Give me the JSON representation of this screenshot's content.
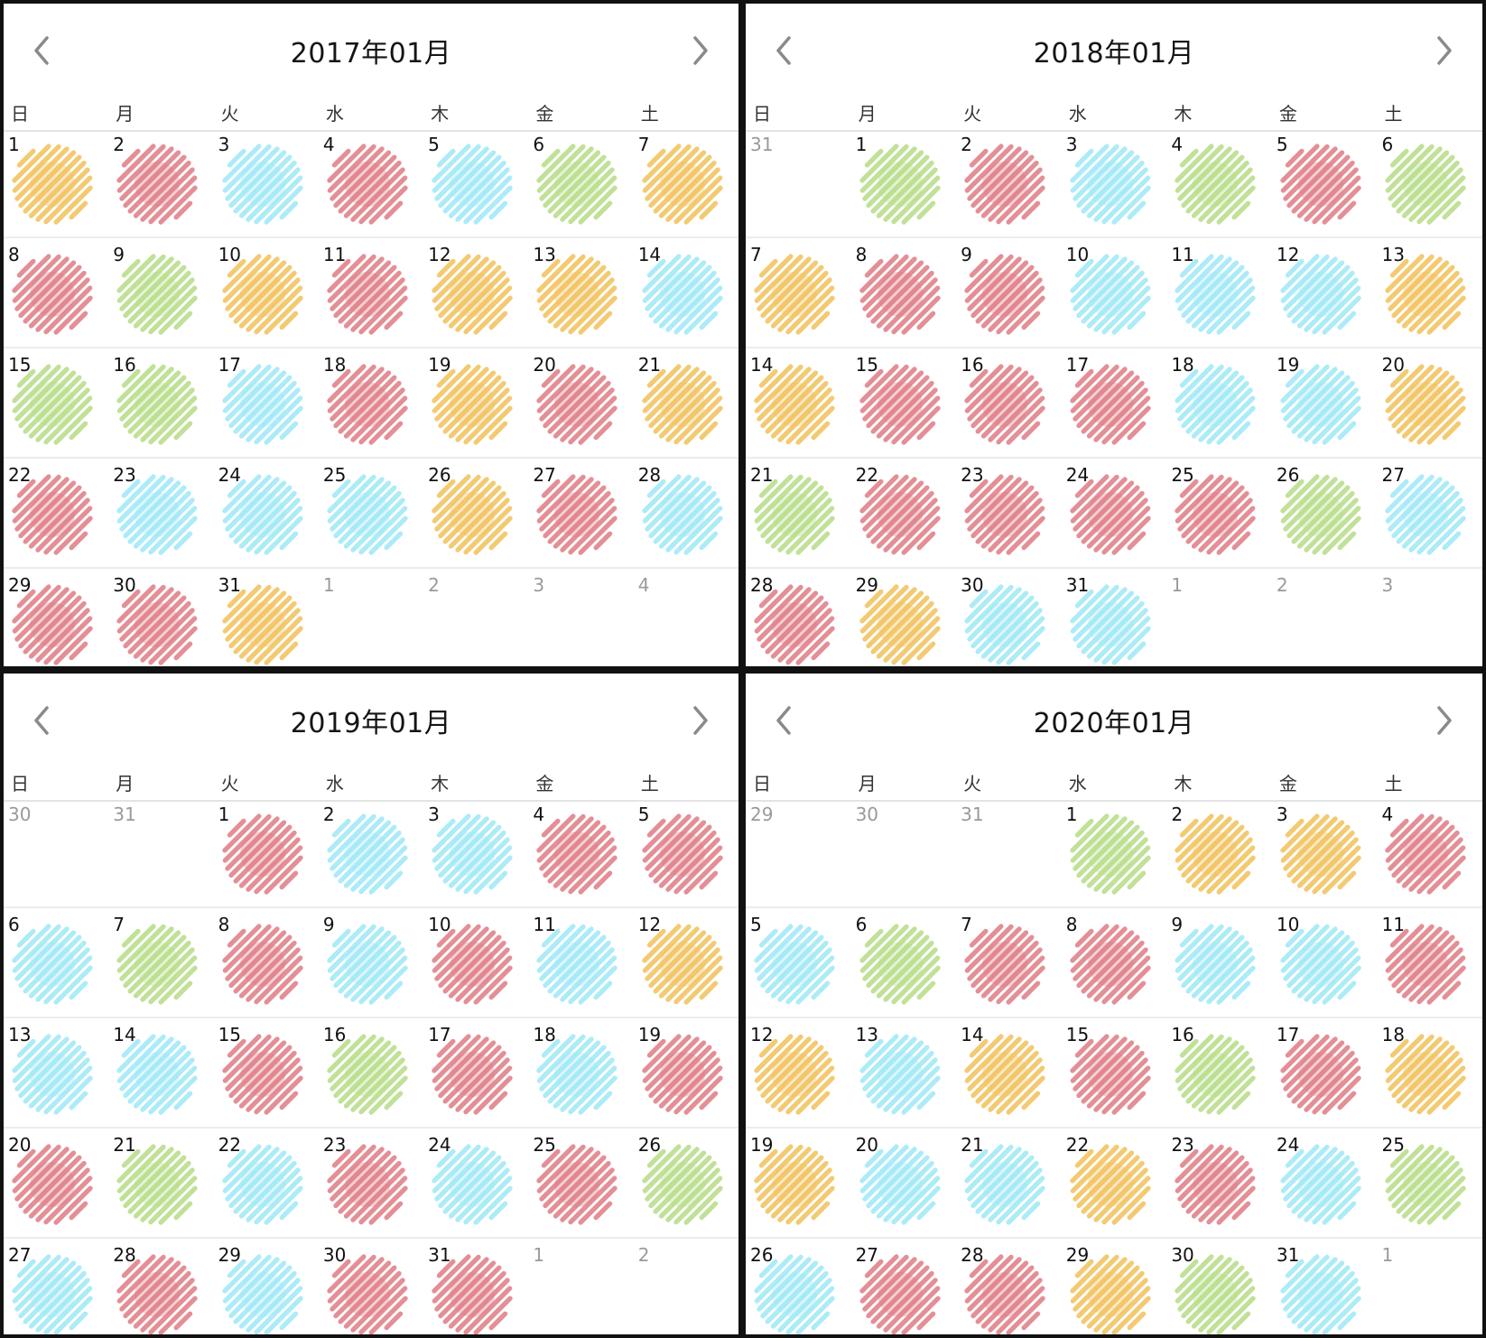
{
  "palette": {
    "orange": "#f2c15a",
    "red": "#e07b84",
    "blue": "#9ee8f7",
    "green": "#b6dc86"
  },
  "calendars": [
    {
      "title": "2017年01月",
      "weekdays": [
        "日",
        "月",
        "火",
        "水",
        "木",
        "金",
        "土"
      ],
      "weeks": [
        [
          {
            "d": "1",
            "c": "orange"
          },
          {
            "d": "2",
            "c": "red"
          },
          {
            "d": "3",
            "c": "blue"
          },
          {
            "d": "4",
            "c": "red"
          },
          {
            "d": "5",
            "c": "blue"
          },
          {
            "d": "6",
            "c": "green"
          },
          {
            "d": "7",
            "c": "orange"
          }
        ],
        [
          {
            "d": "8",
            "c": "red"
          },
          {
            "d": "9",
            "c": "green"
          },
          {
            "d": "10",
            "c": "orange"
          },
          {
            "d": "11",
            "c": "red"
          },
          {
            "d": "12",
            "c": "orange"
          },
          {
            "d": "13",
            "c": "orange"
          },
          {
            "d": "14",
            "c": "blue"
          }
        ],
        [
          {
            "d": "15",
            "c": "green"
          },
          {
            "d": "16",
            "c": "green"
          },
          {
            "d": "17",
            "c": "blue"
          },
          {
            "d": "18",
            "c": "red"
          },
          {
            "d": "19",
            "c": "orange"
          },
          {
            "d": "20",
            "c": "red"
          },
          {
            "d": "21",
            "c": "orange"
          }
        ],
        [
          {
            "d": "22",
            "c": "red"
          },
          {
            "d": "23",
            "c": "blue"
          },
          {
            "d": "24",
            "c": "blue"
          },
          {
            "d": "25",
            "c": "blue"
          },
          {
            "d": "26",
            "c": "orange"
          },
          {
            "d": "27",
            "c": "red"
          },
          {
            "d": "28",
            "c": "blue"
          }
        ],
        [
          {
            "d": "29",
            "c": "red"
          },
          {
            "d": "30",
            "c": "red"
          },
          {
            "d": "31",
            "c": "orange"
          },
          {
            "d": "1",
            "c": "",
            "o": true
          },
          {
            "d": "2",
            "c": "",
            "o": true
          },
          {
            "d": "3",
            "c": "",
            "o": true
          },
          {
            "d": "4",
            "c": "",
            "o": true
          }
        ]
      ]
    },
    {
      "title": "2018年01月",
      "weekdays": [
        "日",
        "月",
        "火",
        "水",
        "木",
        "金",
        "土"
      ],
      "weeks": [
        [
          {
            "d": "31",
            "c": "",
            "o": true
          },
          {
            "d": "1",
            "c": "green"
          },
          {
            "d": "2",
            "c": "red"
          },
          {
            "d": "3",
            "c": "blue"
          },
          {
            "d": "4",
            "c": "green"
          },
          {
            "d": "5",
            "c": "red"
          },
          {
            "d": "6",
            "c": "green"
          }
        ],
        [
          {
            "d": "7",
            "c": "orange"
          },
          {
            "d": "8",
            "c": "red"
          },
          {
            "d": "9",
            "c": "red"
          },
          {
            "d": "10",
            "c": "blue"
          },
          {
            "d": "11",
            "c": "blue"
          },
          {
            "d": "12",
            "c": "blue"
          },
          {
            "d": "13",
            "c": "orange"
          }
        ],
        [
          {
            "d": "14",
            "c": "orange"
          },
          {
            "d": "15",
            "c": "red"
          },
          {
            "d": "16",
            "c": "red"
          },
          {
            "d": "17",
            "c": "red"
          },
          {
            "d": "18",
            "c": "blue"
          },
          {
            "d": "19",
            "c": "blue"
          },
          {
            "d": "20",
            "c": "orange"
          }
        ],
        [
          {
            "d": "21",
            "c": "green"
          },
          {
            "d": "22",
            "c": "red"
          },
          {
            "d": "23",
            "c": "red"
          },
          {
            "d": "24",
            "c": "red"
          },
          {
            "d": "25",
            "c": "red"
          },
          {
            "d": "26",
            "c": "green"
          },
          {
            "d": "27",
            "c": "blue"
          }
        ],
        [
          {
            "d": "28",
            "c": "red"
          },
          {
            "d": "29",
            "c": "orange"
          },
          {
            "d": "30",
            "c": "blue"
          },
          {
            "d": "31",
            "c": "blue"
          },
          {
            "d": "1",
            "c": "",
            "o": true
          },
          {
            "d": "2",
            "c": "",
            "o": true
          },
          {
            "d": "3",
            "c": "",
            "o": true
          }
        ]
      ]
    },
    {
      "title": "2019年01月",
      "weekdays": [
        "日",
        "月",
        "火",
        "水",
        "木",
        "金",
        "土"
      ],
      "weeks": [
        [
          {
            "d": "30",
            "c": "",
            "o": true
          },
          {
            "d": "31",
            "c": "",
            "o": true
          },
          {
            "d": "1",
            "c": "red"
          },
          {
            "d": "2",
            "c": "blue"
          },
          {
            "d": "3",
            "c": "blue"
          },
          {
            "d": "4",
            "c": "red"
          },
          {
            "d": "5",
            "c": "red"
          }
        ],
        [
          {
            "d": "6",
            "c": "blue"
          },
          {
            "d": "7",
            "c": "green"
          },
          {
            "d": "8",
            "c": "red"
          },
          {
            "d": "9",
            "c": "blue"
          },
          {
            "d": "10",
            "c": "red"
          },
          {
            "d": "11",
            "c": "blue"
          },
          {
            "d": "12",
            "c": "orange"
          }
        ],
        [
          {
            "d": "13",
            "c": "blue"
          },
          {
            "d": "14",
            "c": "blue"
          },
          {
            "d": "15",
            "c": "red"
          },
          {
            "d": "16",
            "c": "green"
          },
          {
            "d": "17",
            "c": "red"
          },
          {
            "d": "18",
            "c": "blue"
          },
          {
            "d": "19",
            "c": "red"
          }
        ],
        [
          {
            "d": "20",
            "c": "red"
          },
          {
            "d": "21",
            "c": "green"
          },
          {
            "d": "22",
            "c": "blue"
          },
          {
            "d": "23",
            "c": "red"
          },
          {
            "d": "24",
            "c": "blue"
          },
          {
            "d": "25",
            "c": "red"
          },
          {
            "d": "26",
            "c": "green"
          }
        ],
        [
          {
            "d": "27",
            "c": "blue"
          },
          {
            "d": "28",
            "c": "red"
          },
          {
            "d": "29",
            "c": "blue"
          },
          {
            "d": "30",
            "c": "red"
          },
          {
            "d": "31",
            "c": "red"
          },
          {
            "d": "1",
            "c": "",
            "o": true
          },
          {
            "d": "2",
            "c": "",
            "o": true
          }
        ]
      ]
    },
    {
      "title": "2020年01月",
      "weekdays": [
        "日",
        "月",
        "火",
        "水",
        "木",
        "金",
        "土"
      ],
      "weeks": [
        [
          {
            "d": "29",
            "c": "",
            "o": true
          },
          {
            "d": "30",
            "c": "",
            "o": true
          },
          {
            "d": "31",
            "c": "",
            "o": true
          },
          {
            "d": "1",
            "c": "green"
          },
          {
            "d": "2",
            "c": "orange"
          },
          {
            "d": "3",
            "c": "orange"
          },
          {
            "d": "4",
            "c": "red"
          }
        ],
        [
          {
            "d": "5",
            "c": "blue"
          },
          {
            "d": "6",
            "c": "green"
          },
          {
            "d": "7",
            "c": "red"
          },
          {
            "d": "8",
            "c": "red"
          },
          {
            "d": "9",
            "c": "blue"
          },
          {
            "d": "10",
            "c": "blue"
          },
          {
            "d": "11",
            "c": "red"
          }
        ],
        [
          {
            "d": "12",
            "c": "orange"
          },
          {
            "d": "13",
            "c": "blue"
          },
          {
            "d": "14",
            "c": "orange"
          },
          {
            "d": "15",
            "c": "red"
          },
          {
            "d": "16",
            "c": "green"
          },
          {
            "d": "17",
            "c": "red"
          },
          {
            "d": "18",
            "c": "orange"
          }
        ],
        [
          {
            "d": "19",
            "c": "orange"
          },
          {
            "d": "20",
            "c": "blue"
          },
          {
            "d": "21",
            "c": "blue"
          },
          {
            "d": "22",
            "c": "orange"
          },
          {
            "d": "23",
            "c": "red"
          },
          {
            "d": "24",
            "c": "blue"
          },
          {
            "d": "25",
            "c": "green"
          }
        ],
        [
          {
            "d": "26",
            "c": "blue"
          },
          {
            "d": "27",
            "c": "red"
          },
          {
            "d": "28",
            "c": "red"
          },
          {
            "d": "29",
            "c": "orange"
          },
          {
            "d": "30",
            "c": "green"
          },
          {
            "d": "31",
            "c": "blue"
          },
          {
            "d": "1",
            "c": "",
            "o": true
          }
        ]
      ]
    }
  ]
}
